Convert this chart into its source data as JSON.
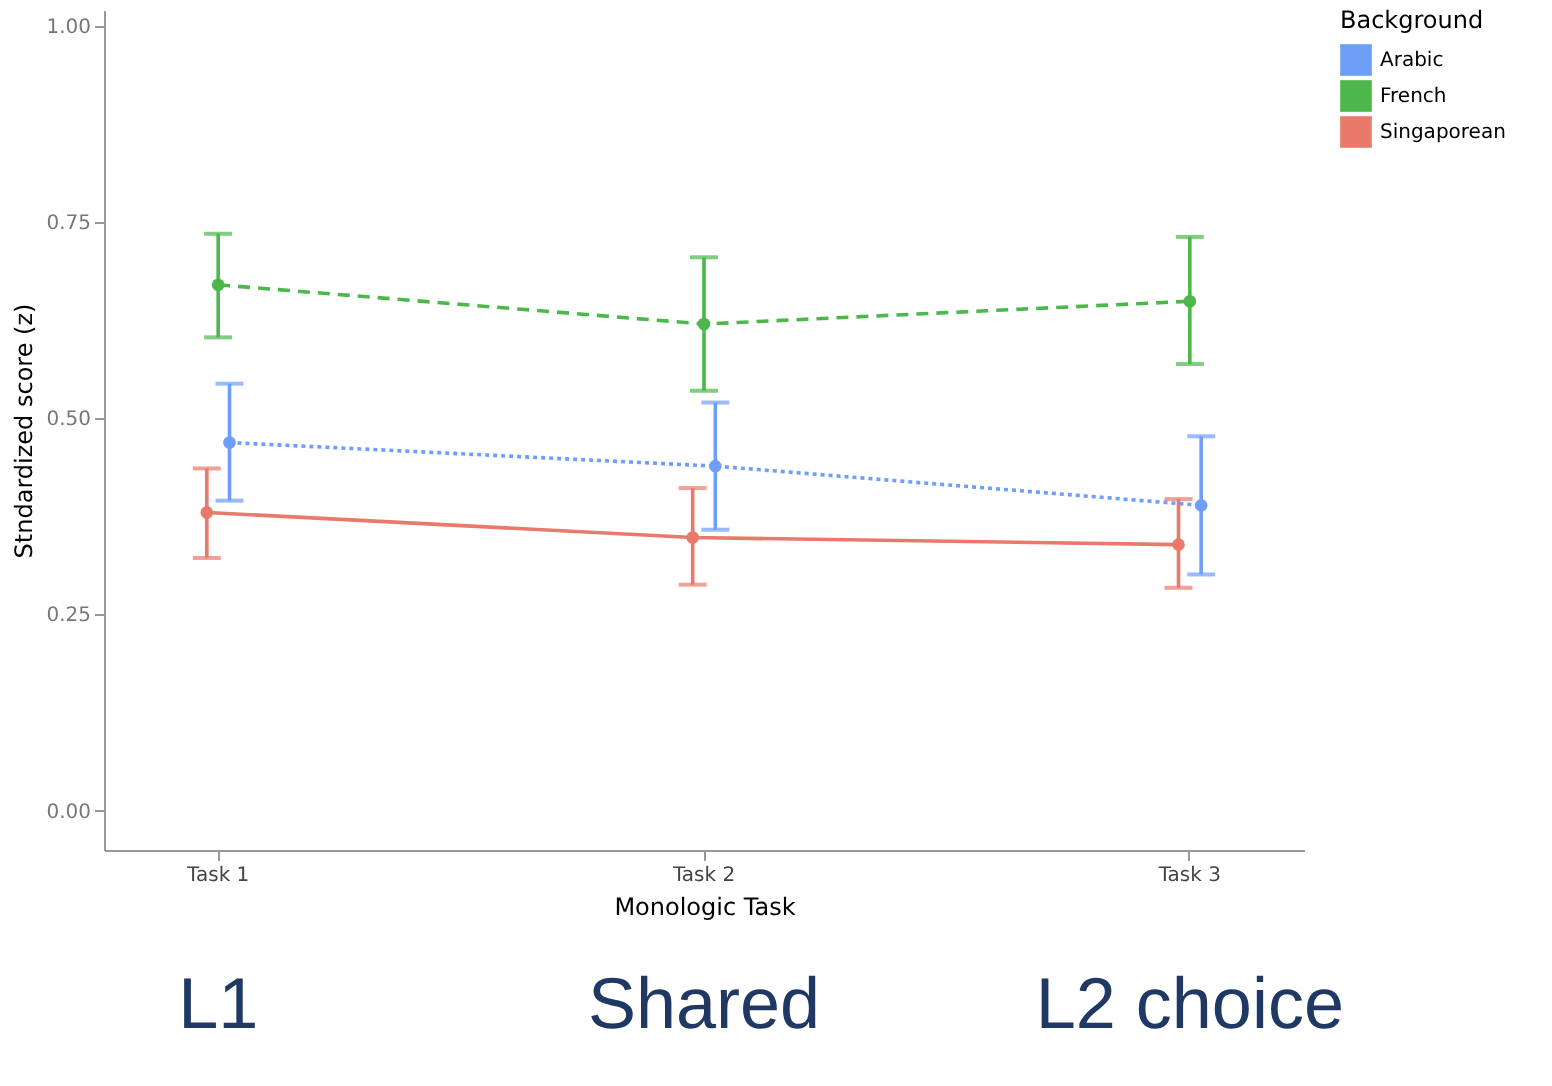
{
  "chart_data": {
    "type": "line",
    "xlabel": "Monologic Task",
    "ylabel": "Stndardized score (z)",
    "legend_title": "Background",
    "categories": [
      "Task 1",
      "Task 2",
      "Task 3"
    ],
    "series": [
      {
        "name": "Arabic",
        "color": "#6f9ef8",
        "line_style": "dotted",
        "values": [
          0.469,
          0.439,
          0.389
        ],
        "errors": [
          [
            0.395,
            0.544
          ],
          [
            0.358,
            0.52
          ],
          [
            0.301,
            0.477
          ]
        ]
      },
      {
        "name": "French",
        "color": "#4cb84c",
        "line_style": "dashed",
        "values": [
          0.67,
          0.62,
          0.649
        ],
        "errors": [
          [
            0.603,
            0.735
          ],
          [
            0.535,
            0.705
          ],
          [
            0.569,
            0.731
          ]
        ]
      },
      {
        "name": "Singaporean",
        "color": "#e8796b",
        "line_style": "solid",
        "values": [
          0.38,
          0.348,
          0.339
        ],
        "errors": [
          [
            0.322,
            0.436
          ],
          [
            0.288,
            0.411
          ],
          [
            0.284,
            0.397
          ]
        ]
      }
    ],
    "ylim": [
      -0.05,
      1.02
    ],
    "yticks": [
      {
        "value": 0,
        "label": "0.00"
      },
      {
        "value": 0.25,
        "label": "0.25"
      },
      {
        "value": 0.5,
        "label": "0.50"
      },
      {
        "value": 0.75,
        "label": "0.75"
      },
      {
        "value": 1,
        "label": "1.00"
      }
    ],
    "grid": false,
    "legend": "top right",
    "marker": "circle",
    "annotations": [
      "L1",
      "Shared",
      "L2 choice"
    ]
  }
}
